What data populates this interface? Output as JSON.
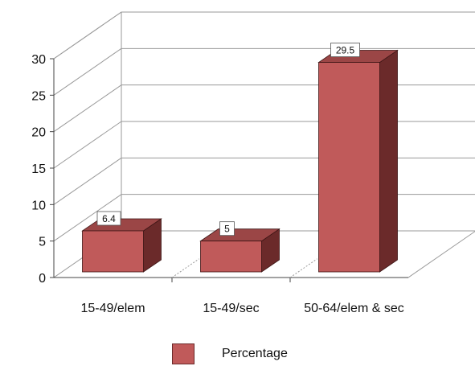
{
  "chart_data": {
    "type": "bar",
    "style": "3d",
    "categories": [
      "15-49/elem",
      "15-49/sec",
      "50-64/elem & sec"
    ],
    "series": [
      {
        "name": "Percentage",
        "values": [
          6.4,
          5,
          29.5
        ],
        "labels": [
          "6.4",
          "5",
          "29.5"
        ]
      }
    ],
    "ylim": [
      0,
      30
    ],
    "yticks": [
      0,
      5,
      10,
      15,
      20,
      25,
      30
    ],
    "grid": true,
    "legend_position": "bottom",
    "colors": {
      "bar_front": "#c05a5a",
      "bar_top": "#9b4646",
      "bar_side": "#6b2a2a",
      "grid": "#9a9a9a",
      "axis": "#444444"
    }
  }
}
